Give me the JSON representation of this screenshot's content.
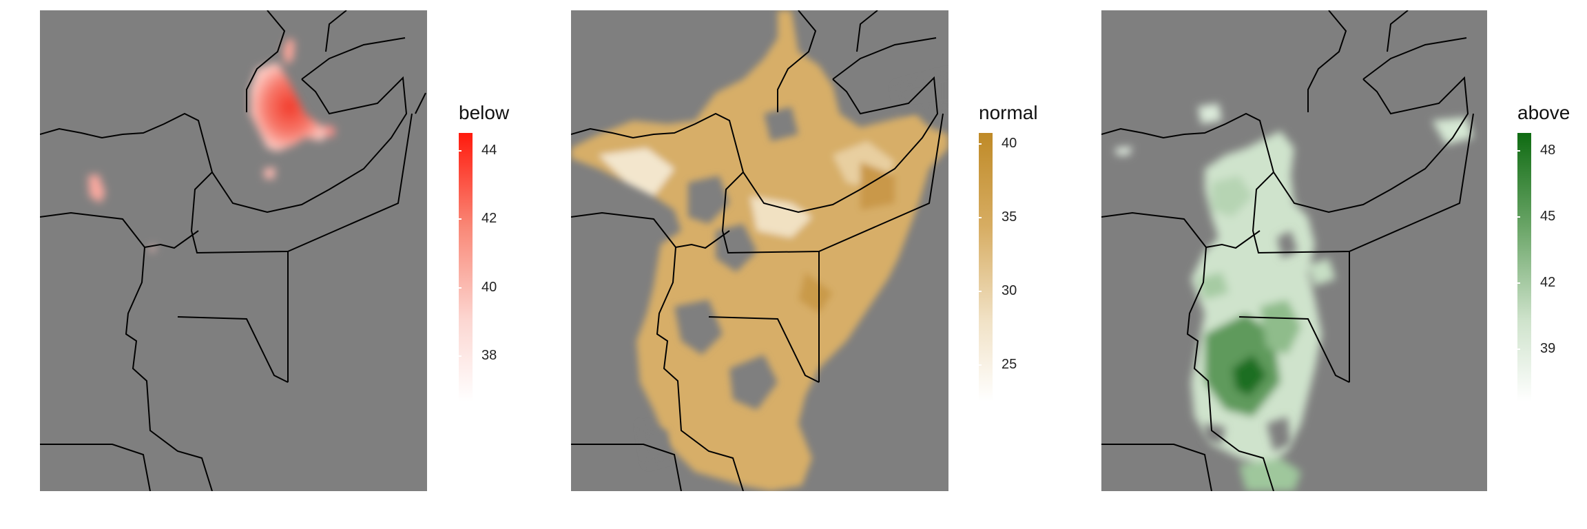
{
  "background": "#7f7f7f",
  "border_color": "#000000",
  "panels": [
    {
      "id": "below",
      "legend": {
        "title": "below",
        "ticks": [
          "44",
          "42",
          "40",
          "38"
        ],
        "color_low": "#ffffff",
        "color_high": "#ff1a0d"
      }
    },
    {
      "id": "normal",
      "legend": {
        "title": "normal",
        "ticks": [
          "40",
          "35",
          "30",
          "25"
        ],
        "color_low": "#ffffff",
        "color_high": "#bf8a27"
      }
    },
    {
      "id": "above",
      "legend": {
        "title": "above",
        "ticks": [
          "48",
          "45",
          "42",
          "39"
        ],
        "color_low": "#ffffff",
        "color_high": "#0f6b12"
      }
    }
  ]
}
